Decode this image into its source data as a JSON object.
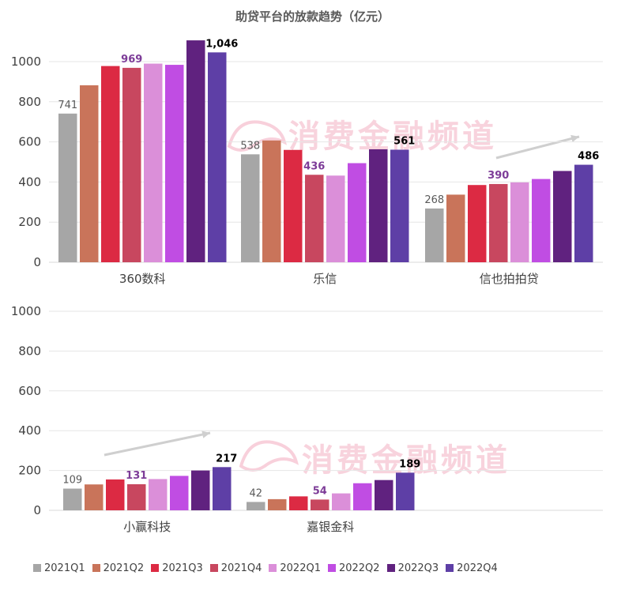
{
  "chart_data": {
    "type": "bar",
    "title": "助贷平台的放款趋势（亿元）",
    "watermark": "消费金融频道",
    "series_names": [
      "2021Q1",
      "2021Q2",
      "2021Q3",
      "2021Q4",
      "2022Q1",
      "2022Q2",
      "2022Q3",
      "2022Q4"
    ],
    "colors": [
      "#a6a6a6",
      "#c9745a",
      "#dc2a43",
      "#c8475f",
      "#db8fd9",
      "#c04de3",
      "#60227f",
      "#5e3fa6"
    ],
    "panels": [
      {
        "ylim": [
          0,
          1100
        ],
        "yticks": [
          0,
          200,
          400,
          600,
          800,
          1000
        ],
        "categories": [
          {
            "name": "360数科",
            "values": [
              741,
              882,
              978,
              969,
              990,
              984,
              1106,
              1046
            ],
            "labels": [
              {
                "index": 0,
                "text": "741"
              },
              {
                "index": 3,
                "text": "969"
              },
              {
                "index": 7,
                "text": "1,046"
              }
            ]
          },
          {
            "name": "乐信",
            "values": [
              538,
              607,
              560,
              436,
              432,
              494,
              563,
              561
            ],
            "labels": [
              {
                "index": 0,
                "text": "538"
              },
              {
                "index": 3,
                "text": "436"
              },
              {
                "index": 7,
                "text": "561"
              }
            ]
          },
          {
            "name": "信也拍拍贷",
            "values": [
              268,
              337,
              385,
              390,
              398,
              415,
              455,
              486
            ],
            "labels": [
              {
                "index": 0,
                "text": "268"
              },
              {
                "index": 3,
                "text": "390"
              },
              {
                "index": 7,
                "text": "486"
              }
            ]
          }
        ]
      },
      {
        "ylim": [
          0,
          1100
        ],
        "yticks": [
          0,
          200,
          400,
          600,
          800,
          1000
        ],
        "categories": [
          {
            "name": "小赢科技",
            "values": [
              109,
              130,
              155,
              131,
              157,
              173,
              200,
              217
            ],
            "labels": [
              {
                "index": 0,
                "text": "109"
              },
              {
                "index": 3,
                "text": "131"
              },
              {
                "index": 7,
                "text": "217"
              }
            ]
          },
          {
            "name": "嘉银金科",
            "values": [
              42,
              56,
              70,
              54,
              85,
              136,
              152,
              189
            ],
            "labels": [
              {
                "index": 0,
                "text": "42"
              },
              {
                "index": 3,
                "text": "54"
              },
              {
                "index": 7,
                "text": "189"
              }
            ]
          }
        ]
      }
    ]
  }
}
